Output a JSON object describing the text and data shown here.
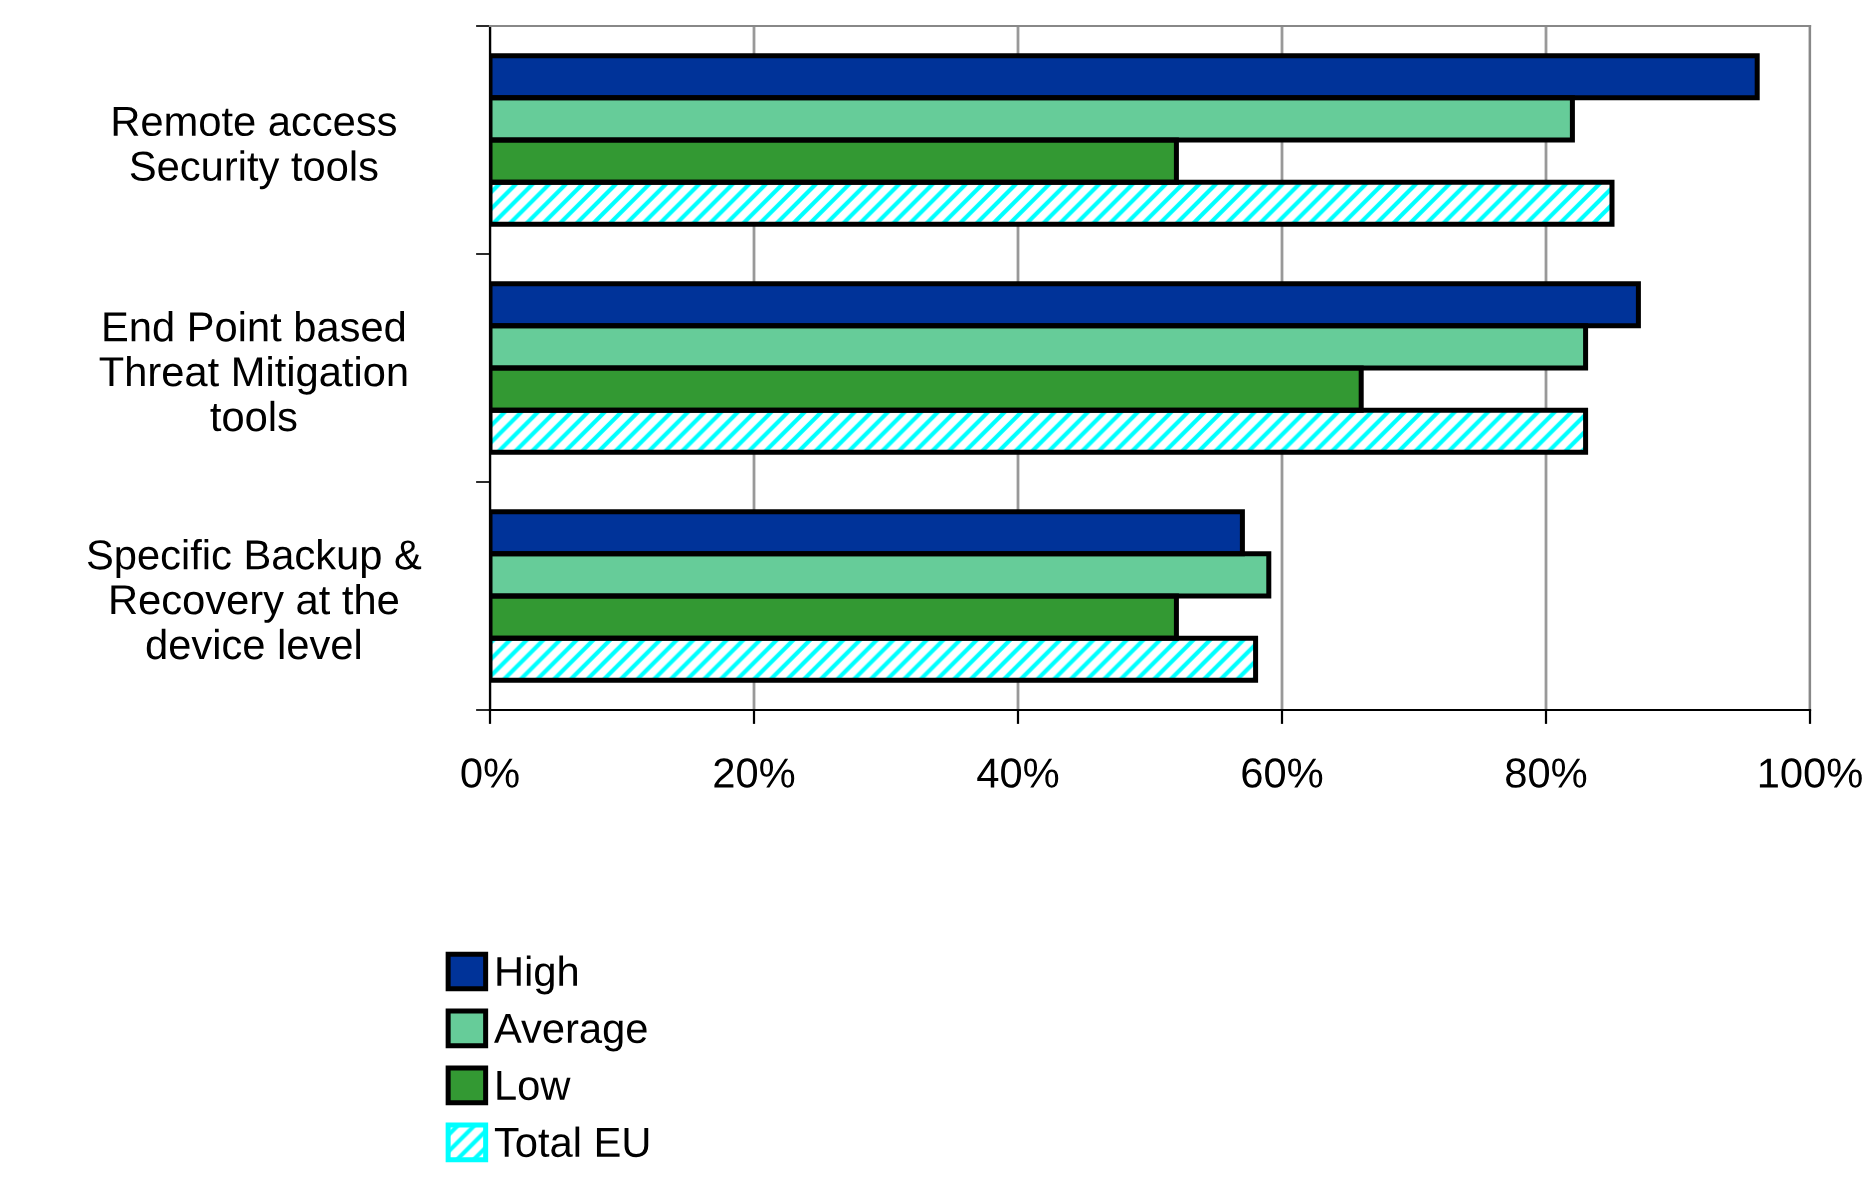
{
  "chart_data": {
    "type": "bar",
    "orientation": "horizontal",
    "categories": [
      "Remote access\nSecurity tools",
      "End Point based\nThreat Mitigation\ntools",
      "Specific Backup &\nRecovery at the\ndevice level"
    ],
    "series": [
      {
        "name": "High",
        "color": "#003399",
        "values": [
          96,
          87,
          57
        ]
      },
      {
        "name": "Average",
        "color": "#66cc99",
        "values": [
          82,
          83,
          59
        ]
      },
      {
        "name": "Low",
        "color": "#339933",
        "values": [
          52,
          66,
          52
        ]
      },
      {
        "name": "Total EU",
        "color": "#00ffff",
        "values": [
          85,
          83,
          58
        ]
      }
    ],
    "xlim": [
      0,
      100
    ],
    "xticks": [
      {
        "value": 0,
        "label": "0%"
      },
      {
        "value": 20,
        "label": "20%"
      },
      {
        "value": 40,
        "label": "40%"
      },
      {
        "value": 60,
        "label": "60%"
      },
      {
        "value": 80,
        "label": "80%"
      },
      {
        "value": 100,
        "label": "100%"
      }
    ],
    "grid": "x",
    "legend": "bottom"
  }
}
